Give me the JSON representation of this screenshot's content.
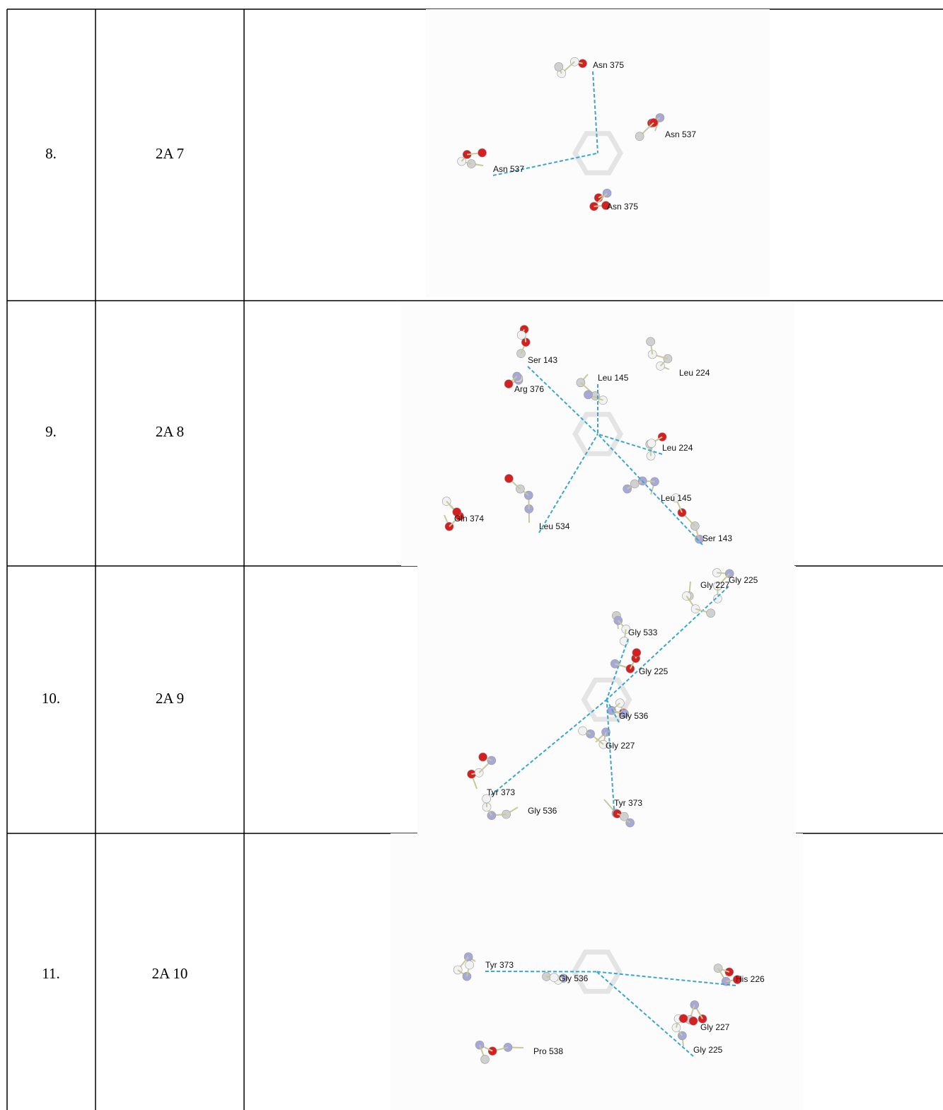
{
  "table": {
    "rows": [
      {
        "number": "8.",
        "compound": "2A 7",
        "residues": [
          "Asn 375",
          "Asn 537",
          "Asn 537",
          "Asn 375"
        ]
      },
      {
        "number": "9.",
        "compound": "2A 8",
        "residues": [
          "Ser 143",
          "Arg 376",
          "Leu 145",
          "Leu 224",
          "Leu 224",
          "Gln 374",
          "Leu 534",
          "Leu 145",
          "Ser 143"
        ]
      },
      {
        "number": "10.",
        "compound": "2A 9",
        "residues": [
          "Gly 225",
          "Gly 227",
          "Gly 533",
          "Gly 225",
          "Gly 536",
          "Gly 227",
          "Tyr 373",
          "Gly 536",
          "Tyr 373"
        ]
      },
      {
        "number": "11.",
        "compound": "2A 10",
        "residues": [
          "Tyr 373",
          "Gly 536",
          "His 226",
          "Gly 227",
          "Gly 225",
          "Pro 538"
        ]
      }
    ]
  }
}
